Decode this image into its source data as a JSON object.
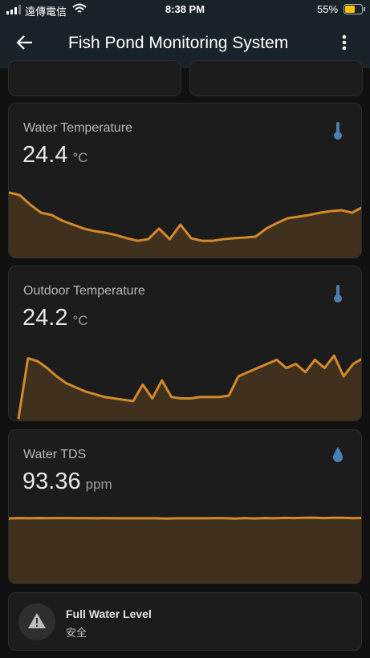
{
  "status_bar": {
    "carrier": "遠傳電信",
    "time": "8:38 PM",
    "battery": "55%"
  },
  "header": {
    "title": "Fish Pond Monitoring System"
  },
  "cards": [
    {
      "title": "Water Temperature",
      "value": "24.4",
      "unit": "°C",
      "chart_data": {
        "type": "line",
        "color": "#d4892a",
        "ylim": [
          22,
          25
        ],
        "values": [
          24.83,
          24.72,
          24.3,
          23.95,
          23.85,
          23.6,
          23.43,
          23.26,
          23.15,
          23.08,
          22.98,
          22.84,
          22.73,
          22.8,
          23.26,
          22.8,
          23.43,
          22.84,
          22.73,
          22.73,
          22.8,
          22.84,
          22.87,
          22.91,
          23.26,
          23.5,
          23.71,
          23.78,
          23.85,
          23.95,
          24.02,
          24.06,
          23.95,
          24.2
        ]
      }
    },
    {
      "title": "Outdoor Temperature",
      "value": "24.2",
      "unit": "°C",
      "chart_data": {
        "type": "line",
        "color": "#d4892a",
        "ylim": [
          20,
          25
        ],
        "values": [
          null,
          20.1,
          24.5,
          24.3,
          23.8,
          23.2,
          22.7,
          22.4,
          22.1,
          21.9,
          21.7,
          21.6,
          21.5,
          21.4,
          22.6,
          21.6,
          22.9,
          21.7,
          21.6,
          21.6,
          21.7,
          21.7,
          21.7,
          21.8,
          23.2,
          23.5,
          23.8,
          24.1,
          24.4,
          23.8,
          24.1,
          23.5,
          24.4,
          23.8,
          24.7,
          23.2,
          24.1,
          24.5
        ]
      }
    },
    {
      "title": "Water TDS",
      "value": "93.36",
      "unit": "ppm",
      "chart_data": {
        "type": "line",
        "color": "#d4892a",
        "ylim": [
          0,
          100
        ],
        "values": [
          93,
          93.5,
          93.2,
          93.6,
          93.4,
          93.5,
          93.5,
          93.4,
          93.4,
          93.3,
          93.4,
          93.3,
          93.3,
          93.2,
          93.3,
          93.3,
          92.8,
          93.3,
          93.2,
          93.3,
          93.3,
          93.4,
          93.4,
          92.8,
          93.6,
          92.9,
          93.6,
          93.2,
          93.8,
          93.6,
          94,
          94.1,
          93.5,
          94,
          94,
          93.4,
          93.8
        ]
      }
    },
    {
      "title": "Full Water Level",
      "state": "安全"
    }
  ]
}
